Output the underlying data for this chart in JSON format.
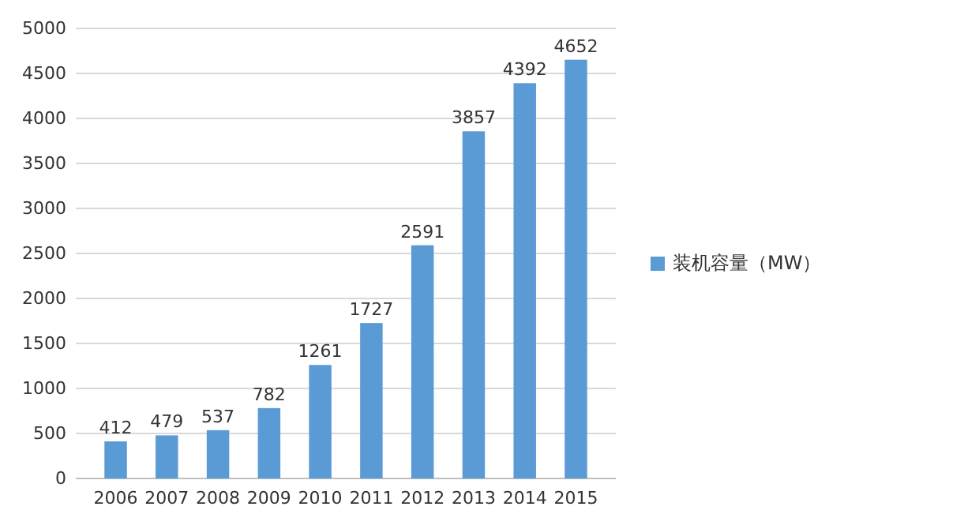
{
  "chart_data": {
    "type": "bar",
    "categories": [
      "2006",
      "2007",
      "2008",
      "2009",
      "2010",
      "2011",
      "2012",
      "2013",
      "2014",
      "2015"
    ],
    "series": [
      {
        "name": "装机容量（MW）",
        "color": "#5b9bd5",
        "values": [
          412,
          479,
          537,
          782,
          1261,
          1727,
          2591,
          3857,
          4392,
          4652
        ]
      }
    ],
    "ylim": [
      0,
      5000
    ],
    "yticks": [
      0,
      500,
      1000,
      1500,
      2000,
      2500,
      3000,
      3500,
      4000,
      4500,
      5000
    ],
    "grid": "y",
    "legend": "right",
    "data_labels": true
  }
}
